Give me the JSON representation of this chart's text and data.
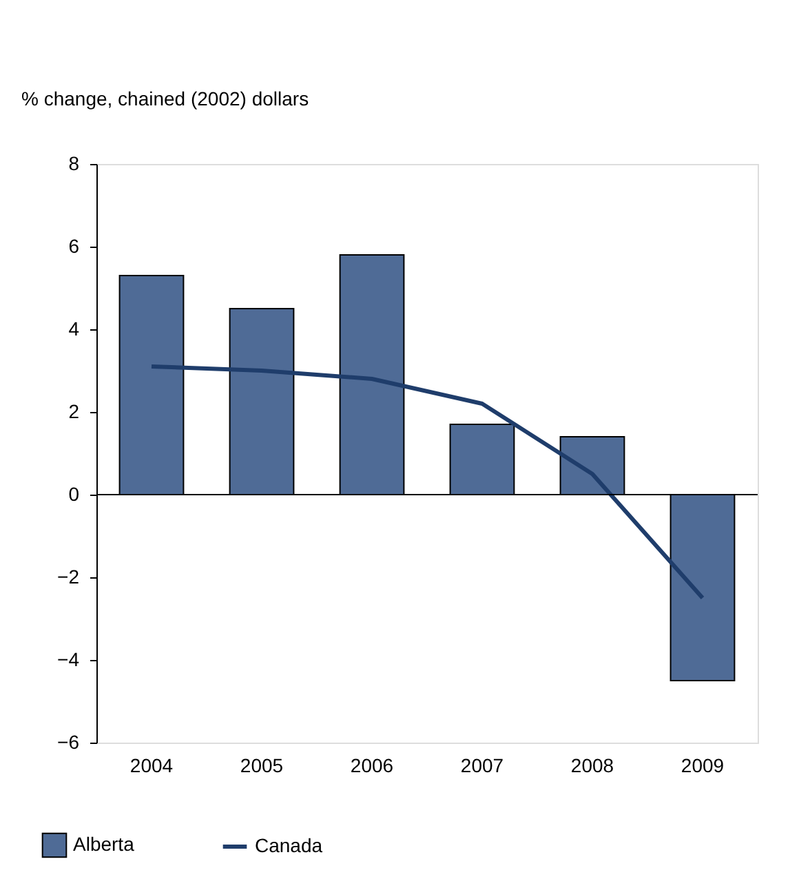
{
  "chart_data": {
    "type": "bar",
    "ylabel": "% change, chained (2002) dollars",
    "categories": [
      "2004",
      "2005",
      "2006",
      "2007",
      "2008",
      "2009"
    ],
    "series": [
      {
        "name": "Alberta",
        "color": "#4f6b96",
        "values": [
          5.3,
          4.5,
          5.8,
          1.7,
          1.4,
          -4.5
        ]
      },
      {
        "name": "Canada",
        "type": "line",
        "color": "#1f3d6b",
        "values": [
          3.1,
          3.0,
          2.8,
          2.2,
          0.5,
          -2.5
        ]
      }
    ],
    "ylim": [
      -6,
      8
    ],
    "yticks": [
      -6,
      -4,
      -2,
      0,
      2,
      4,
      6,
      8
    ],
    "ref_lines": [
      {
        "axis": "y",
        "value": 0,
        "color": "#000000"
      }
    ],
    "grid": false,
    "legend": "bottom"
  }
}
